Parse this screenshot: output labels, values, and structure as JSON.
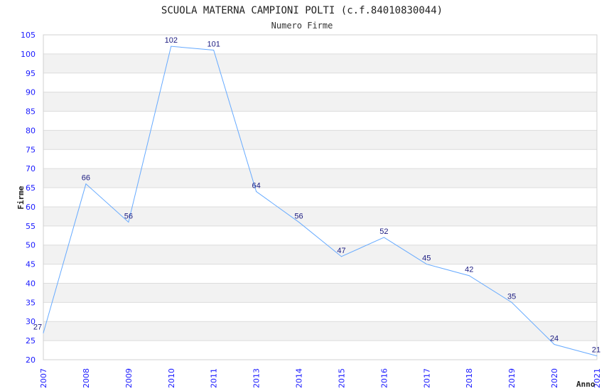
{
  "chart_data": {
    "type": "line",
    "title": "SCUOLA MATERNA CAMPIONI POLTI (c.f.84010830044)",
    "subtitle": "Numero Firme",
    "xlabel": "Anno",
    "ylabel": "Firme",
    "categories": [
      "2007",
      "2008",
      "2009",
      "2010",
      "2011",
      "2013",
      "2014",
      "2015",
      "2016",
      "2017",
      "2018",
      "2019",
      "2020",
      "2021"
    ],
    "series": [
      {
        "name": "Firme",
        "values": [
          27,
          66,
          56,
          102,
          101,
          64,
          56,
          47,
          52,
          45,
          42,
          35,
          24,
          21
        ]
      }
    ],
    "ylim": [
      20,
      105
    ],
    "yticks": [
      20,
      25,
      30,
      35,
      40,
      45,
      50,
      55,
      60,
      65,
      70,
      75,
      80,
      85,
      90,
      95,
      100,
      105
    ],
    "grid": true,
    "line_color": "#66aaff",
    "band_color": "#f2f2f2"
  }
}
